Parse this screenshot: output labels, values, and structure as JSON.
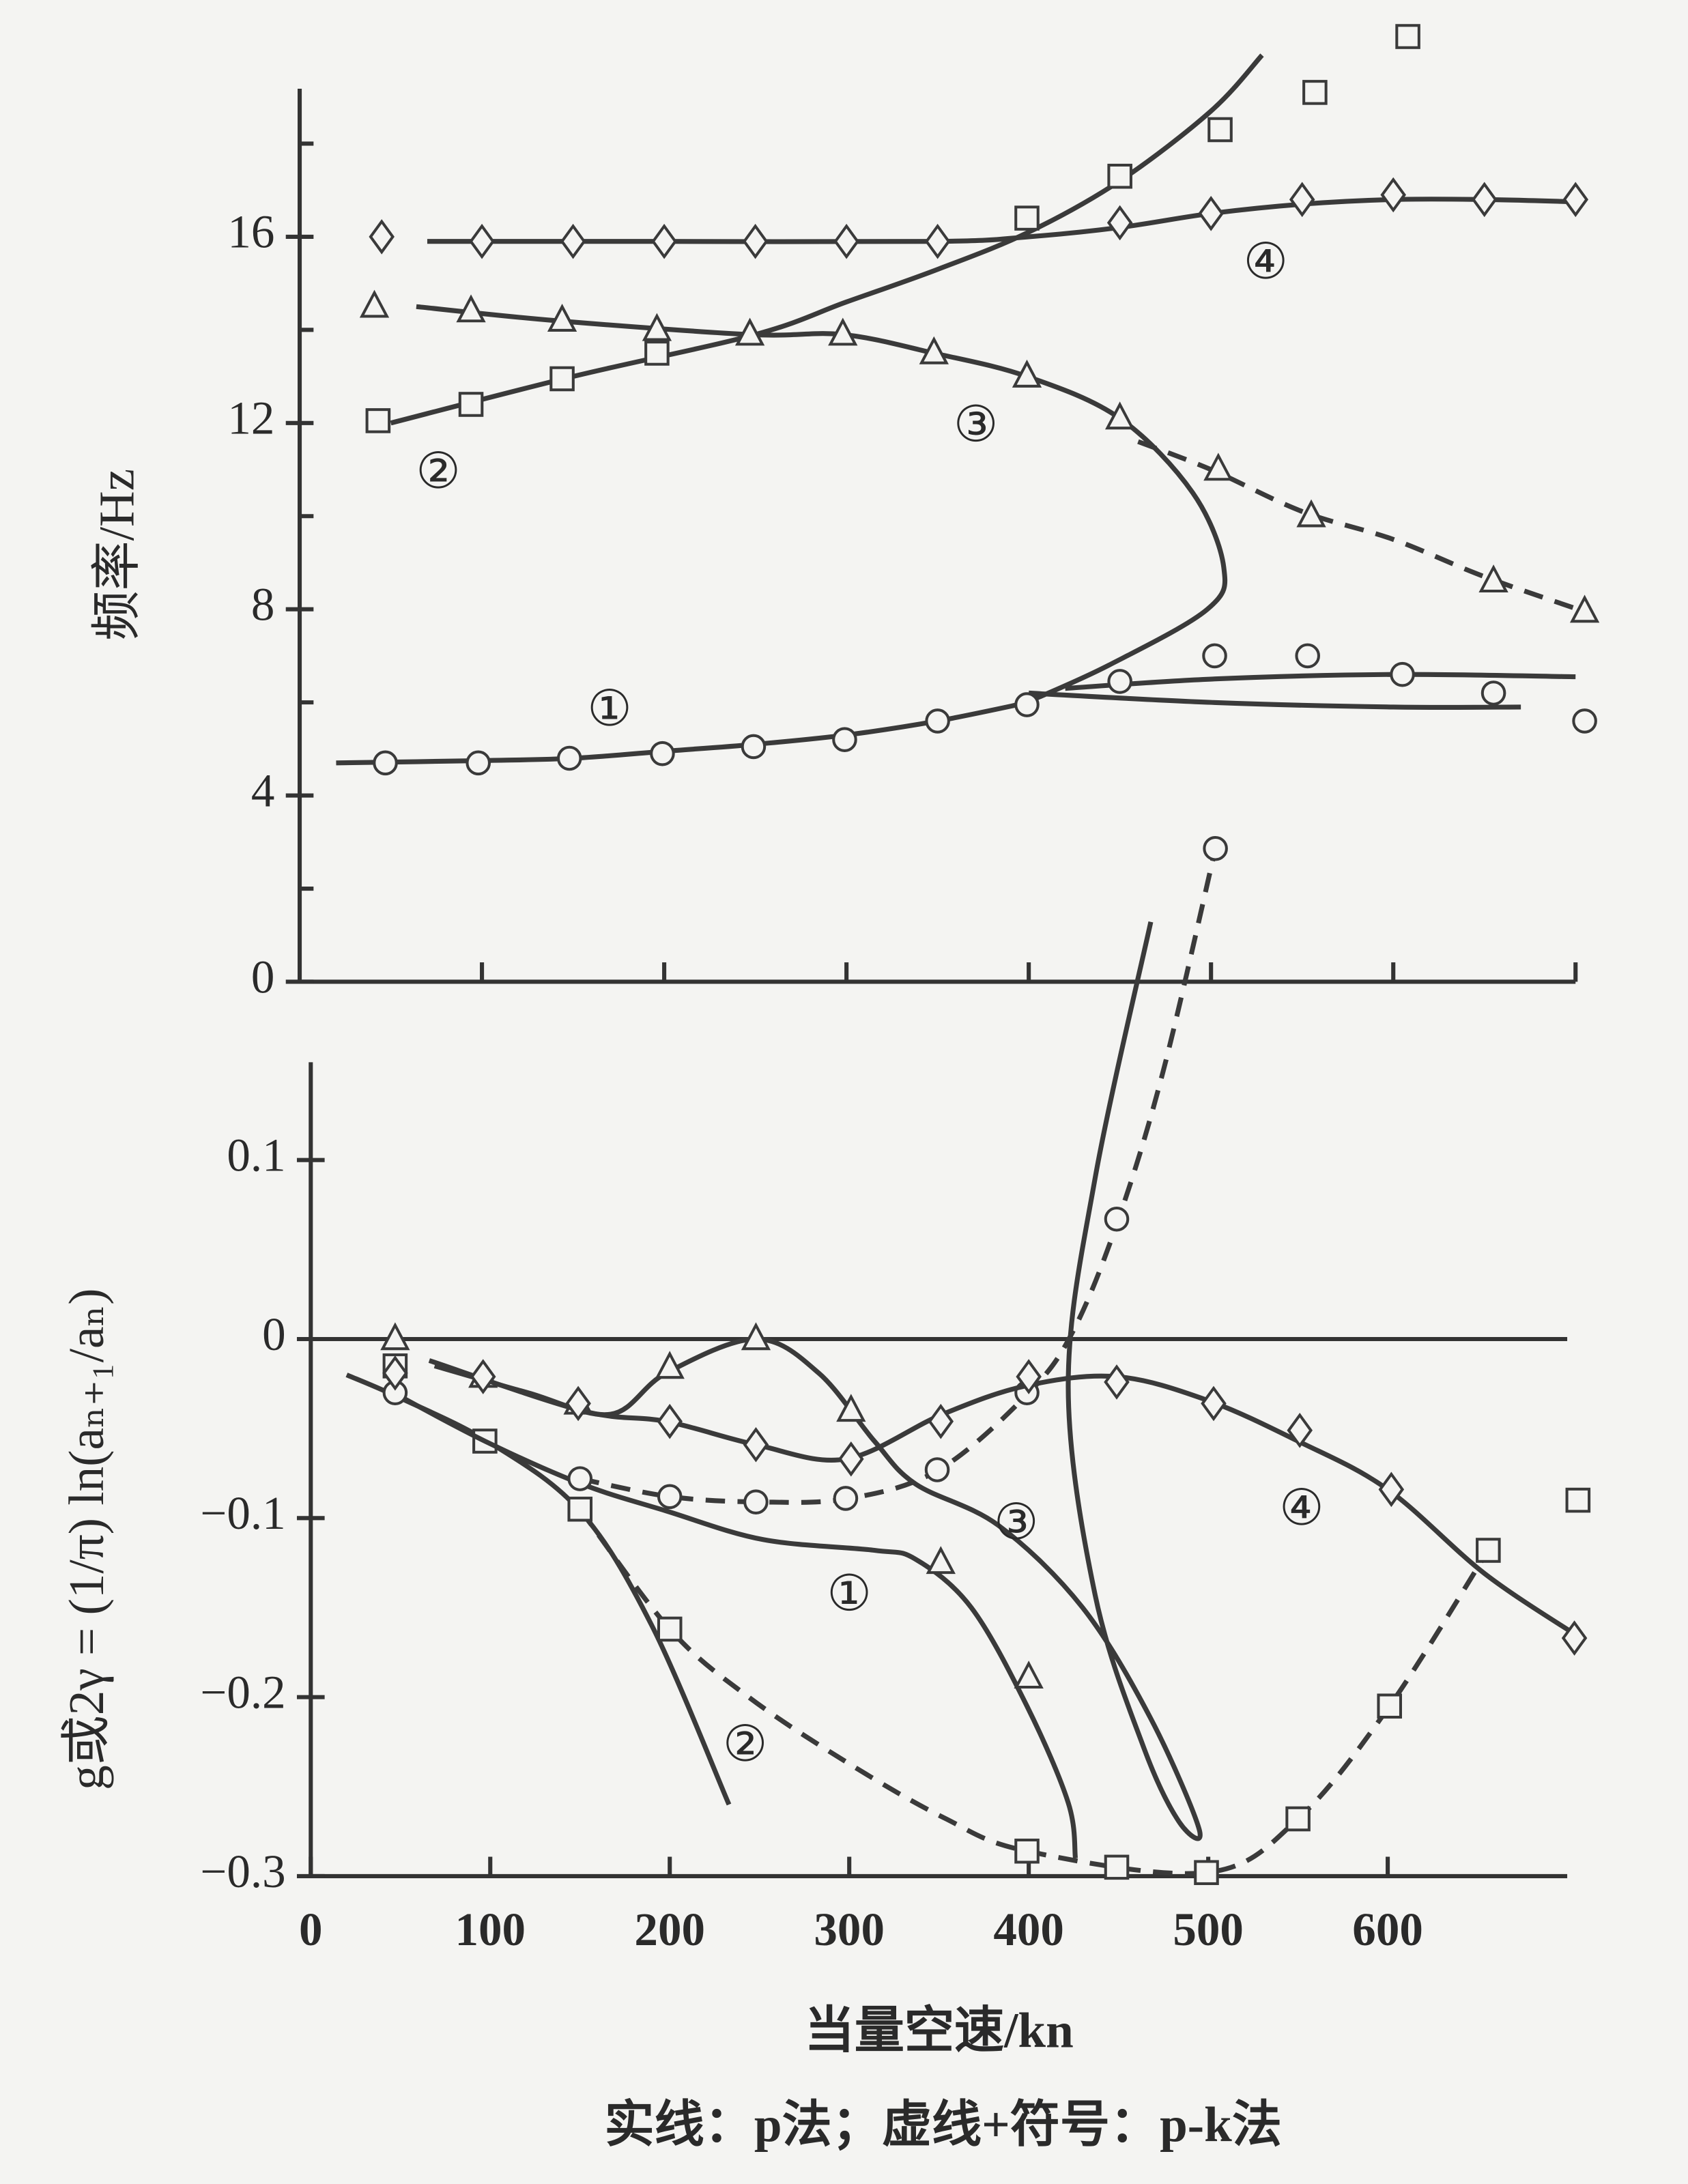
{
  "caption": "实线：p法；虚线+符号：p-k法",
  "chart_data": [
    {
      "type": "line",
      "ylabel": "频率/Hz",
      "xlim": [
        0,
        700
      ],
      "ylim": [
        0,
        19
      ],
      "xticks": [
        100,
        200,
        300,
        400,
        500,
        600,
        700
      ],
      "xtick_labels": false,
      "yticks": [
        0,
        4,
        8,
        12,
        16
      ],
      "minor_yticks": [
        2,
        6,
        10,
        14,
        18
      ],
      "series": [
        {
          "style": "solid",
          "color": "#3a3a3a",
          "x": [
            70,
            200,
            350,
            400,
            450,
            500,
            550,
            600,
            650,
            700
          ],
          "values": [
            15.9,
            15.9,
            15.9,
            16.0,
            16.2,
            16.5,
            16.7,
            16.8,
            16.8,
            16.75
          ]
        },
        {
          "style": "none",
          "marker": "diamond",
          "color": "#3a3a3a",
          "x": [
            45,
            100,
            150,
            200,
            250,
            300,
            350,
            450,
            500,
            550,
            600,
            650,
            700
          ],
          "values": [
            16.0,
            15.9,
            15.9,
            15.9,
            15.9,
            15.9,
            15.9,
            16.3,
            16.5,
            16.8,
            16.9,
            16.8,
            16.8
          ]
        },
        {
          "style": "solid",
          "color": "#3a3a3a",
          "x": [
            50,
            150,
            250,
            300,
            350,
            400,
            450,
            500,
            528
          ],
          "values": [
            12.0,
            13.0,
            13.9,
            14.6,
            15.3,
            16.1,
            17.2,
            18.7,
            19.9
          ]
        },
        {
          "style": "none",
          "marker": "square",
          "color": "#3a3a3a",
          "x": [
            43,
            94,
            144,
            196,
            399,
            450,
            505,
            557,
            608
          ],
          "values": [
            12.05,
            12.4,
            12.95,
            13.5,
            16.4,
            17.3,
            18.3,
            19.1,
            20.3
          ]
        },
        {
          "style": "solid",
          "color": "#3a3a3a",
          "x": [
            64,
            140,
            247,
            298,
            348,
            399,
            450,
            490,
            507,
            498,
            444,
            399
          ],
          "values": [
            14.5,
            14.2,
            13.9,
            13.9,
            13.5,
            13.0,
            12.1,
            10.5,
            8.9,
            8.0,
            6.8,
            6.0
          ]
        },
        {
          "style": "dashed",
          "color": "#3a3a3a",
          "x": [
            460,
            500,
            550,
            600,
            650,
            705
          ],
          "values": [
            11.6,
            11.0,
            10.1,
            9.5,
            8.7,
            7.95
          ]
        },
        {
          "style": "none",
          "marker": "triangle",
          "color": "#3a3a3a",
          "x": [
            41,
            94,
            144,
            196,
            247,
            298,
            348,
            399,
            450,
            504,
            555,
            655,
            705
          ],
          "values": [
            14.5,
            14.4,
            14.2,
            14.0,
            13.9,
            13.9,
            13.5,
            13.0,
            12.1,
            11.0,
            10.0,
            8.6,
            7.95
          ]
        },
        {
          "style": "solid",
          "color": "#3a3a3a",
          "x": [
            20,
            100,
            150,
            200,
            250,
            300,
            350,
            400
          ],
          "values": [
            4.7,
            4.75,
            4.8,
            4.95,
            5.1,
            5.3,
            5.6,
            6.0
          ]
        },
        {
          "style": "solid",
          "color": "#3a3a3a",
          "x": [
            420,
            500,
            600,
            700
          ],
          "values": [
            6.3,
            6.5,
            6.6,
            6.55
          ]
        },
        {
          "style": "solid",
          "color": "#3a3a3a",
          "x": [
            400,
            500,
            600,
            670
          ],
          "values": [
            6.2,
            6.0,
            5.9,
            5.9
          ]
        },
        {
          "style": "none",
          "marker": "circle",
          "color": "#3a3a3a",
          "x": [
            47,
            98,
            148,
            199,
            249,
            299,
            350,
            399,
            450,
            502,
            553,
            605,
            655,
            705
          ],
          "values": [
            4.7,
            4.7,
            4.8,
            4.9,
            5.05,
            5.2,
            5.6,
            5.95,
            6.45,
            7.0,
            7.0,
            6.6,
            6.2,
            5.6
          ]
        }
      ],
      "annotations": [
        {
          "text": "①",
          "x": 170,
          "y": 5.8
        },
        {
          "text": "②",
          "x": 76,
          "y": 10.9
        },
        {
          "text": "③",
          "x": 371,
          "y": 11.9
        },
        {
          "text": "④",
          "x": 530,
          "y": 15.4
        }
      ]
    },
    {
      "type": "line",
      "xlabel": "当量空速/kn",
      "ylabel": "g或2γ = (1/π) ln(aₙ₊₁/aₙ)",
      "xlim": [
        0,
        700
      ],
      "ylim": [
        -0.3,
        0.15
      ],
      "xticks": [
        0,
        100,
        200,
        300,
        400,
        500,
        600
      ],
      "xtick_labels": true,
      "yticks": [
        0.1,
        0,
        {
          "value": -0.1,
          "label": "−0.1"
        },
        {
          "value": -0.2,
          "label": "−0.2"
        },
        {
          "value": -0.3,
          "label": "−0.3"
        }
      ],
      "zero_line": true,
      "series": [
        {
          "style": "solid",
          "color": "#3a3a3a",
          "x": [
            20,
            50,
            100,
            150,
            190,
            233
          ],
          "values": [
            -0.02,
            -0.033,
            -0.058,
            -0.096,
            -0.16,
            -0.26
          ]
        },
        {
          "style": "dashed",
          "color": "#3a3a3a",
          "x": [
            150,
            200,
            244,
            298,
            352,
            399,
            499,
            550,
            601,
            656
          ],
          "values": [
            -0.095,
            -0.162,
            -0.2,
            -0.236,
            -0.267,
            -0.286,
            -0.298,
            -0.268,
            -0.205,
            -0.118
          ]
        },
        {
          "style": "none",
          "marker": "square",
          "color": "#3a3a3a",
          "x": [
            47,
            97,
            150,
            200,
            399,
            449,
            499,
            550,
            601,
            656,
            706
          ],
          "values": [
            -0.015,
            -0.057,
            -0.095,
            -0.162,
            -0.286,
            -0.295,
            -0.298,
            -0.268,
            -0.205,
            -0.118,
            -0.09
          ]
        },
        {
          "style": "solid",
          "color": "#3a3a3a",
          "x": [
            46,
            97,
            151,
            198,
            252,
            314,
            337,
            368,
            399,
            422,
            426
          ],
          "values": [
            -0.03,
            -0.057,
            -0.081,
            -0.096,
            -0.112,
            -0.118,
            -0.123,
            -0.15,
            -0.205,
            -0.259,
            -0.29
          ]
        },
        {
          "style": "dashed",
          "color": "#3a3a3a",
          "x": [
            150,
            200,
            250,
            300,
            350,
            400,
            425,
            450,
            475,
            504
          ],
          "values": [
            -0.078,
            -0.088,
            -0.091,
            -0.089,
            -0.073,
            -0.03,
            0.005,
            0.067,
            0.15,
            0.274
          ]
        },
        {
          "style": "none",
          "marker": "circle",
          "color": "#3a3a3a",
          "x": [
            47,
            150,
            200,
            248,
            298,
            349,
            399,
            449,
            504
          ],
          "values": [
            -0.03,
            -0.078,
            -0.088,
            -0.091,
            -0.089,
            -0.073,
            -0.03,
            0.067,
            0.274
          ]
        },
        {
          "style": "solid",
          "color": "#3a3a3a",
          "x": [
            69,
            121,
            167,
            198,
            248,
            283,
            314,
            337,
            383,
            430,
            468,
            495,
            484,
            464,
            437,
            422,
            437,
            468
          ],
          "values": [
            -0.015,
            -0.03,
            -0.042,
            -0.019,
            0.0,
            -0.019,
            -0.057,
            -0.081,
            -0.104,
            -0.15,
            -0.212,
            -0.274,
            -0.27,
            -0.228,
            -0.143,
            -0.026,
            0.09,
            0.233
          ]
        },
        {
          "style": "none",
          "marker": "triangle",
          "color": "#3a3a3a",
          "x": [
            47,
            96,
            149,
            200,
            248,
            301,
            351,
            400
          ],
          "values": [
            0.0,
            -0.021,
            -0.036,
            -0.016,
            0.0,
            -0.04,
            -0.125,
            -0.189
          ]
        },
        {
          "style": "solid",
          "color": "#3a3a3a",
          "x": [
            66,
            151,
            198,
            248,
            298,
            352,
            399,
            449,
            499,
            550,
            600,
            654,
            706
          ],
          "values": [
            -0.012,
            -0.04,
            -0.046,
            -0.059,
            -0.067,
            -0.042,
            -0.026,
            -0.021,
            -0.034,
            -0.057,
            -0.084,
            -0.131,
            -0.166
          ]
        },
        {
          "style": "none",
          "marker": "diamond",
          "color": "#3a3a3a",
          "x": [
            47,
            96,
            149,
            200,
            248,
            301,
            351,
            400,
            449,
            503,
            551,
            602,
            704
          ],
          "values": [
            -0.019,
            -0.021,
            -0.036,
            -0.046,
            -0.059,
            -0.067,
            -0.046,
            -0.021,
            -0.024,
            -0.036,
            -0.051,
            -0.084,
            -0.167
          ]
        }
      ],
      "annotations": [
        {
          "text": "①",
          "x": 300,
          "y": -0.144
        },
        {
          "text": "②",
          "x": 242,
          "y": -0.228
        },
        {
          "text": "③",
          "x": 393,
          "y": -0.104
        },
        {
          "text": "④",
          "x": 552,
          "y": -0.096
        }
      ]
    }
  ]
}
